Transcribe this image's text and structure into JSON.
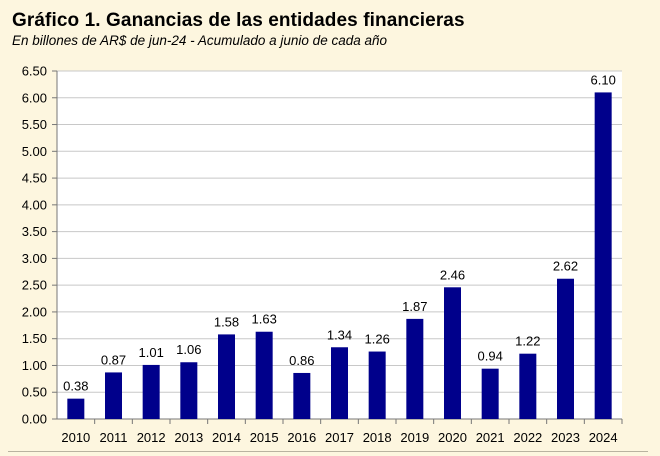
{
  "title": "Gráfico 1. Ganancias de las entidades financieras",
  "subtitle": "En billones de AR$ de jun-24 - Acumulado a junio de cada año",
  "colors": {
    "background": "#fdf6df",
    "plot_background": "#ffffff",
    "bar": "#00008b",
    "grid": "#c8c8c8"
  },
  "chart_data": {
    "type": "bar",
    "title": "Gráfico 1. Ganancias de las entidades financieras",
    "subtitle": "En billones de AR$ de jun-24 - Acumulado a junio de cada año",
    "xlabel": "",
    "ylabel": "",
    "categories": [
      "2010",
      "2011",
      "2012",
      "2013",
      "2014",
      "2015",
      "2016",
      "2017",
      "2018",
      "2019",
      "2020",
      "2021",
      "2022",
      "2023",
      "2024"
    ],
    "values": [
      0.38,
      0.87,
      1.01,
      1.06,
      1.58,
      1.63,
      0.86,
      1.34,
      1.26,
      1.87,
      2.46,
      0.94,
      1.22,
      2.62,
      6.1
    ],
    "value_labels": [
      "0.38",
      "0.87",
      "1.01",
      "1.06",
      "1.58",
      "1.63",
      "0.86",
      "1.34",
      "1.26",
      "1.87",
      "2.46",
      "0.94",
      "1.22",
      "2.62",
      "6.10"
    ],
    "ylim": [
      0,
      6.5
    ],
    "yticks": [
      "0.00",
      "0.50",
      "1.00",
      "1.50",
      "2.00",
      "2.50",
      "3.00",
      "3.50",
      "4.00",
      "4.50",
      "5.00",
      "5.50",
      "6.00",
      "6.50"
    ],
    "grid": true,
    "legend": "none"
  }
}
